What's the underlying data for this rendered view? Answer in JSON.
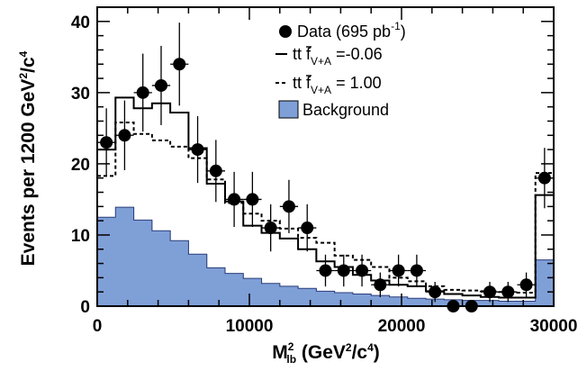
{
  "chart_data": {
    "type": "histogram",
    "xlim": [
      0,
      30000
    ],
    "ylim": [
      0,
      42
    ],
    "bin_width": 1200,
    "x_ticks": [
      "0",
      "10000",
      "20000",
      "30000"
    ],
    "y_ticks": [
      "0",
      "10",
      "20",
      "30",
      "40"
    ],
    "xlabel": {
      "base": "M",
      "sup": "2",
      "sub": "lb",
      "unit_open": " (GeV",
      "unit_sup": "2",
      "unit_mid": "/c",
      "unit_sup2": "4",
      "unit_close": ")"
    },
    "ylabel": {
      "main": "Events per 1200 GeV",
      "sup": "2",
      "mid": "/c",
      "sup2": "4"
    },
    "legend": {
      "placement": "top-right",
      "data": {
        "text": "Data (695 pb",
        "sup": "-1",
        "close": ")"
      },
      "solid": {
        "prefix": "t",
        "mid": "t",
        "f": " f",
        "sub": "V+A",
        "value": " =-0.06"
      },
      "dashed": {
        "prefix": "t",
        "mid": "t",
        "f": " f",
        "sub": "V+A",
        "value": " = 1.00"
      },
      "background": {
        "text": "Background"
      }
    },
    "bin_edges": [
      0,
      1200,
      2400,
      3600,
      4800,
      6000,
      7200,
      8400,
      9600,
      10800,
      12000,
      13200,
      14400,
      15600,
      16800,
      18000,
      19200,
      20400,
      21600,
      22800,
      24000,
      25200,
      26400,
      27600,
      28800,
      30000
    ],
    "series": [
      {
        "name": "Data (695 pb-1)",
        "type": "points",
        "x": [
          600,
          1800,
          3000,
          4200,
          5400,
          6600,
          7800,
          9000,
          10200,
          11400,
          12600,
          13800,
          15000,
          16200,
          17400,
          18600,
          19800,
          21000,
          22200,
          23400,
          24600,
          25800,
          27000,
          28200,
          29400
        ],
        "y": [
          23,
          24,
          30,
          31,
          34,
          22,
          19,
          15,
          15,
          11,
          14,
          11,
          5,
          5,
          5,
          3,
          5,
          5,
          2,
          0,
          0,
          2,
          2,
          3,
          18
        ]
      },
      {
        "name": "tt fV+A = -0.06",
        "type": "step-solid",
        "values": [
          22,
          29.3,
          27.8,
          28.5,
          27.2,
          22.2,
          17.2,
          14.7,
          11.3,
          10.3,
          9.5,
          8.0,
          6.3,
          5.5,
          4.4,
          3.6,
          3.0,
          2.8,
          2.1,
          1.7,
          1.5,
          1.3,
          1.2,
          1.2,
          15.6
        ]
      },
      {
        "name": "tt fV+A = 1.00",
        "type": "step-dashed",
        "values": [
          18.3,
          25.8,
          24.2,
          23.3,
          22.4,
          20.8,
          17.8,
          14.5,
          13.0,
          12.0,
          10.9,
          9.6,
          8.9,
          7.1,
          6.5,
          5.5,
          4.0,
          3.5,
          2.8,
          2.3,
          2.2,
          2.1,
          2.0,
          1.9,
          18.7
        ]
      },
      {
        "name": "Background",
        "type": "filled",
        "color": "#7f9fd7",
        "values": [
          12.5,
          13.9,
          12.1,
          10.6,
          9.2,
          7.3,
          5.4,
          4.6,
          3.9,
          3.2,
          2.8,
          2.5,
          2.1,
          1.9,
          1.7,
          1.5,
          1.3,
          1.1,
          1.0,
          0.9,
          0.8,
          0.8,
          0.7,
          0.7,
          6.5
        ]
      }
    ]
  }
}
